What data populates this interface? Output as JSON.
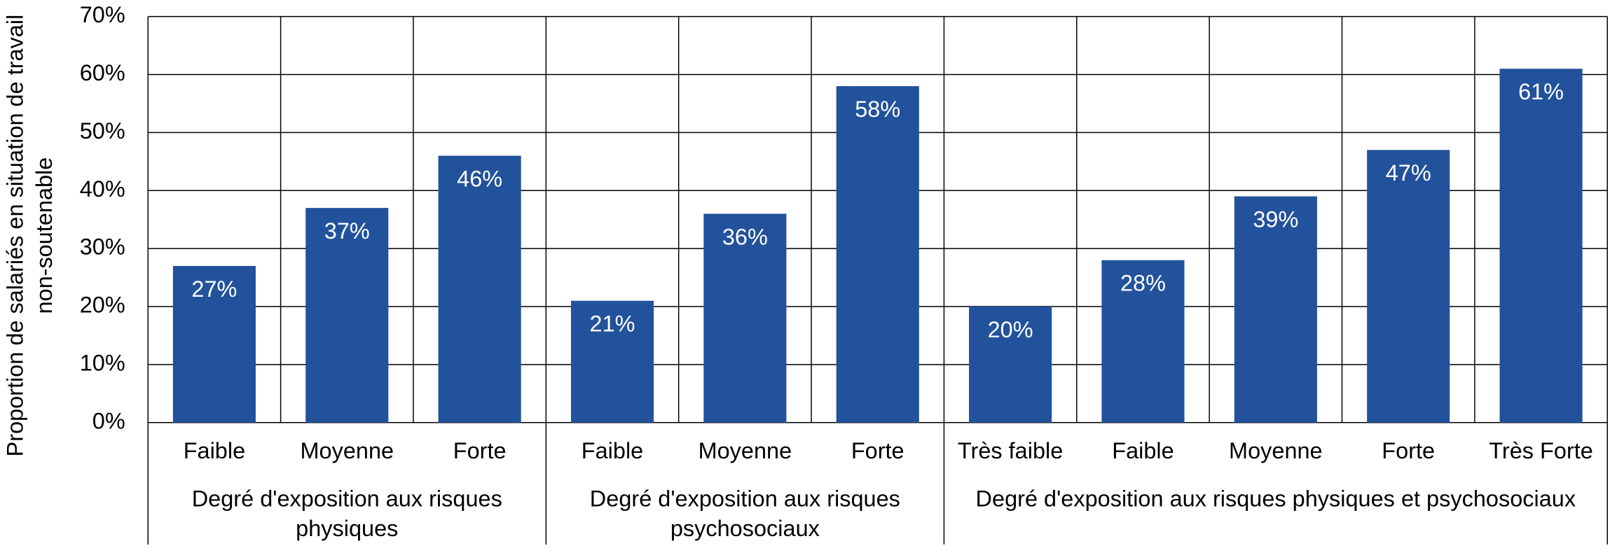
{
  "chart_data": {
    "type": "bar",
    "y_label": "Proportion de salariés en situation de travail non-soutenable",
    "color": "#22529b",
    "groups": [
      {
        "name": "Degré d'exposition aux risques physiques",
        "categories": [
          "Faible",
          "Moyenne",
          "Forte"
        ],
        "values": [
          27,
          37,
          46
        ],
        "value_labels": [
          "27%",
          "37%",
          "46%"
        ]
      },
      {
        "name": "Degré d'exposition aux risques psychosociaux",
        "categories": [
          "Faible",
          "Moyenne",
          "Forte"
        ],
        "values": [
          21,
          36,
          58
        ],
        "value_labels": [
          "21%",
          "36%",
          "58%"
        ]
      },
      {
        "name": "Degré d'exposition aux risques physiques et psychosociaux",
        "categories": [
          "Très faible",
          "Faible",
          "Moyenne",
          "Forte",
          "Très Forte"
        ],
        "values": [
          20,
          28,
          39,
          47,
          61
        ],
        "value_labels": [
          "20%",
          "28%",
          "39%",
          "47%",
          "61%"
        ]
      }
    ],
    "ylim": [
      0,
      70
    ],
    "yticks": [
      {
        "value": 0,
        "label": "0%"
      },
      {
        "value": 10,
        "label": "10%"
      },
      {
        "value": 20,
        "label": "20%"
      },
      {
        "value": 30,
        "label": "30%"
      },
      {
        "value": 40,
        "label": "40%"
      },
      {
        "value": 50,
        "label": "50%"
      },
      {
        "value": 60,
        "label": "60%"
      },
      {
        "value": 70,
        "label": "70%"
      }
    ],
    "grid": true
  }
}
